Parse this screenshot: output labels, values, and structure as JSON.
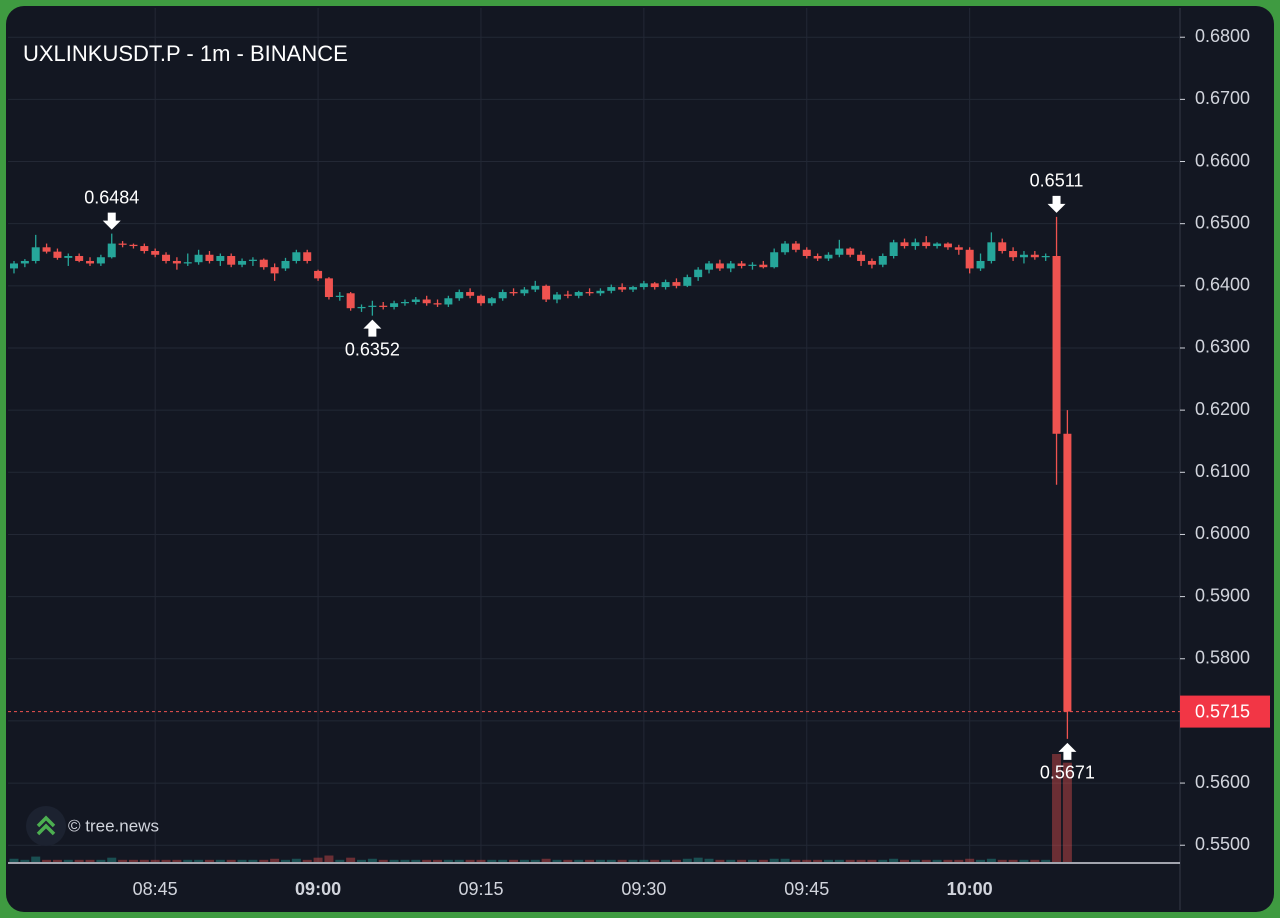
{
  "chart_data": {
    "type": "candlestick",
    "title": "UXLINKUSDT.P - 1m - BINANCE",
    "watermark": "© tree.news",
    "up_color": "#26a69a",
    "down_color": "#ef5350",
    "x": [
      "08:32",
      "08:33",
      "08:34",
      "08:35",
      "08:36",
      "08:37",
      "08:38",
      "08:39",
      "08:40",
      "08:41",
      "08:42",
      "08:43",
      "08:44",
      "08:45",
      "08:46",
      "08:47",
      "08:48",
      "08:49",
      "08:50",
      "08:51",
      "08:52",
      "08:53",
      "08:54",
      "08:55",
      "08:56",
      "08:57",
      "08:58",
      "08:59",
      "09:00",
      "09:01",
      "09:02",
      "09:03",
      "09:04",
      "09:05",
      "09:06",
      "09:07",
      "09:08",
      "09:09",
      "09:10",
      "09:11",
      "09:12",
      "09:13",
      "09:14",
      "09:15",
      "09:16",
      "09:17",
      "09:18",
      "09:19",
      "09:20",
      "09:21",
      "09:22",
      "09:23",
      "09:24",
      "09:25",
      "09:26",
      "09:27",
      "09:28",
      "09:29",
      "09:30",
      "09:31",
      "09:32",
      "09:33",
      "09:34",
      "09:35",
      "09:36",
      "09:37",
      "09:38",
      "09:39",
      "09:40",
      "09:41",
      "09:42",
      "09:43",
      "09:44",
      "09:45",
      "09:46",
      "09:47",
      "09:48",
      "09:49",
      "09:50",
      "09:51",
      "09:52",
      "09:53",
      "09:54",
      "09:55",
      "09:56",
      "09:57",
      "09:58",
      "09:59",
      "10:00",
      "10:01",
      "10:02",
      "10:03",
      "10:04",
      "10:05",
      "10:06",
      "10:07",
      "10:08",
      "10:09"
    ],
    "open": [
      0.6428,
      0.6436,
      0.644,
      0.6462,
      0.6455,
      0.6445,
      0.6448,
      0.644,
      0.6436,
      0.6446,
      0.6468,
      0.6466,
      0.6464,
      0.6456,
      0.645,
      0.644,
      0.6436,
      0.6438,
      0.645,
      0.644,
      0.6448,
      0.6434,
      0.644,
      0.6442,
      0.643,
      0.6428,
      0.644,
      0.6454,
      0.6424,
      0.6412,
      0.6382,
      0.6388,
      0.6364,
      0.6366,
      0.6368,
      0.6366,
      0.6372,
      0.6374,
      0.6378,
      0.6372,
      0.637,
      0.638,
      0.639,
      0.6384,
      0.6372,
      0.638,
      0.639,
      0.6388,
      0.6394,
      0.64,
      0.6378,
      0.6386,
      0.6384,
      0.639,
      0.6388,
      0.6392,
      0.6398,
      0.6394,
      0.6398,
      0.6404,
      0.6398,
      0.6406,
      0.64,
      0.6414,
      0.6426,
      0.6436,
      0.6428,
      0.6436,
      0.6432,
      0.6434,
      0.643,
      0.6454,
      0.6468,
      0.6458,
      0.6448,
      0.6444,
      0.645,
      0.646,
      0.645,
      0.644,
      0.6434,
      0.6448,
      0.647,
      0.6464,
      0.647,
      0.6464,
      0.6468,
      0.6462,
      0.6458,
      0.6428,
      0.644,
      0.647,
      0.6456,
      0.6446,
      0.645,
      0.6446,
      0.6448,
      0.6162
    ],
    "high": [
      0.644,
      0.6443,
      0.6482,
      0.6468,
      0.646,
      0.6452,
      0.6452,
      0.6446,
      0.645,
      0.6484,
      0.6472,
      0.6468,
      0.6468,
      0.646,
      0.6454,
      0.6446,
      0.6452,
      0.6458,
      0.6456,
      0.6452,
      0.6452,
      0.6444,
      0.6446,
      0.6444,
      0.6436,
      0.6445,
      0.6458,
      0.6458,
      0.6426,
      0.6414,
      0.639,
      0.639,
      0.637,
      0.6376,
      0.6374,
      0.6376,
      0.6378,
      0.6382,
      0.6384,
      0.6378,
      0.6384,
      0.6394,
      0.6396,
      0.6386,
      0.6382,
      0.6394,
      0.6396,
      0.6398,
      0.6408,
      0.6402,
      0.639,
      0.6392,
      0.6392,
      0.6396,
      0.6396,
      0.6402,
      0.6404,
      0.64,
      0.6408,
      0.6406,
      0.641,
      0.6412,
      0.6418,
      0.643,
      0.644,
      0.6442,
      0.644,
      0.644,
      0.6438,
      0.644,
      0.646,
      0.6472,
      0.6472,
      0.6462,
      0.6452,
      0.6454,
      0.6474,
      0.6462,
      0.6456,
      0.6444,
      0.6452,
      0.6474,
      0.6476,
      0.6476,
      0.648,
      0.647,
      0.647,
      0.6466,
      0.6462,
      0.6452,
      0.6486,
      0.6476,
      0.6462,
      0.6456,
      0.6456,
      0.6452,
      0.6511,
      0.62
    ],
    "low": [
      0.642,
      0.643,
      0.6436,
      0.6452,
      0.6442,
      0.6432,
      0.6438,
      0.6432,
      0.6432,
      0.6444,
      0.6462,
      0.646,
      0.6452,
      0.6446,
      0.6436,
      0.6426,
      0.6432,
      0.6434,
      0.6436,
      0.6432,
      0.643,
      0.643,
      0.6432,
      0.6426,
      0.6408,
      0.6424,
      0.6436,
      0.6436,
      0.6408,
      0.6378,
      0.6376,
      0.636,
      0.6358,
      0.6352,
      0.6362,
      0.6362,
      0.6368,
      0.637,
      0.6368,
      0.6366,
      0.6366,
      0.6376,
      0.638,
      0.6368,
      0.6368,
      0.6376,
      0.6384,
      0.6384,
      0.639,
      0.6374,
      0.6372,
      0.638,
      0.638,
      0.6384,
      0.6384,
      0.6388,
      0.639,
      0.639,
      0.6394,
      0.6394,
      0.6394,
      0.6396,
      0.6398,
      0.6408,
      0.642,
      0.6424,
      0.6422,
      0.6428,
      0.6426,
      0.6428,
      0.6428,
      0.645,
      0.6454,
      0.6444,
      0.644,
      0.644,
      0.6446,
      0.6446,
      0.6432,
      0.6428,
      0.643,
      0.6444,
      0.646,
      0.6458,
      0.646,
      0.646,
      0.6458,
      0.645,
      0.642,
      0.6424,
      0.6436,
      0.6452,
      0.644,
      0.6436,
      0.6442,
      0.644,
      0.608,
      0.5671
    ],
    "close": [
      0.6436,
      0.644,
      0.6462,
      0.6455,
      0.6445,
      0.6448,
      0.644,
      0.6436,
      0.6446,
      0.6468,
      0.6466,
      0.6464,
      0.6456,
      0.645,
      0.644,
      0.6436,
      0.6438,
      0.645,
      0.644,
      0.6448,
      0.6434,
      0.644,
      0.6442,
      0.643,
      0.642,
      0.644,
      0.6454,
      0.644,
      0.6412,
      0.6382,
      0.6384,
      0.6364,
      0.6366,
      0.6368,
      0.6366,
      0.6372,
      0.6374,
      0.6378,
      0.6372,
      0.637,
      0.638,
      0.639,
      0.6384,
      0.6372,
      0.638,
      0.639,
      0.6388,
      0.6394,
      0.64,
      0.6378,
      0.6386,
      0.6384,
      0.639,
      0.6388,
      0.6392,
      0.6398,
      0.6394,
      0.6398,
      0.6404,
      0.6398,
      0.6406,
      0.64,
      0.6414,
      0.6426,
      0.6436,
      0.6428,
      0.6436,
      0.6432,
      0.6434,
      0.643,
      0.6454,
      0.6468,
      0.6458,
      0.6448,
      0.6444,
      0.645,
      0.646,
      0.645,
      0.644,
      0.6434,
      0.6448,
      0.647,
      0.6464,
      0.647,
      0.6464,
      0.6468,
      0.6462,
      0.6458,
      0.6428,
      0.644,
      0.647,
      0.6456,
      0.6446,
      0.645,
      0.6446,
      0.6448,
      0.6162,
      0.5715
    ],
    "volume": [
      3,
      2,
      5,
      2,
      2,
      2,
      2,
      2,
      2,
      4,
      2,
      2,
      2,
      2,
      2,
      2,
      2,
      2,
      2,
      2,
      2,
      2,
      2,
      2,
      3,
      2,
      3,
      2,
      4,
      6,
      2,
      4,
      2,
      3,
      2,
      2,
      2,
      2,
      2,
      2,
      2,
      2,
      2,
      2,
      2,
      2,
      2,
      2,
      2,
      3,
      2,
      2,
      2,
      2,
      2,
      2,
      2,
      2,
      2,
      2,
      2,
      2,
      3,
      4,
      3,
      2,
      2,
      2,
      2,
      2,
      3,
      3,
      2,
      2,
      2,
      2,
      2,
      2,
      2,
      2,
      2,
      3,
      2,
      2,
      2,
      2,
      2,
      2,
      3,
      2,
      3,
      2,
      2,
      2,
      2,
      2,
      100,
      92
    ],
    "xlim": [
      "08:32",
      "10:19"
    ],
    "xticks": [
      "08:45",
      "09:00",
      "09:15",
      "09:30",
      "09:45",
      "10:00"
    ],
    "ylim": [
      0.5473,
      0.6847
    ],
    "yticks": [
      {
        "value": 0.55,
        "label": "0.5500"
      },
      {
        "value": 0.56,
        "label": "0.5600"
      },
      {
        "value": 0.57,
        "label": "0.5700"
      },
      {
        "value": 0.58,
        "label": "0.5800"
      },
      {
        "value": 0.59,
        "label": "0.5900"
      },
      {
        "value": 0.6,
        "label": "0.6000"
      },
      {
        "value": 0.61,
        "label": "0.6100"
      },
      {
        "value": 0.62,
        "label": "0.6200"
      },
      {
        "value": 0.63,
        "label": "0.6300"
      },
      {
        "value": 0.64,
        "label": "0.6400"
      },
      {
        "value": 0.65,
        "label": "0.6500"
      },
      {
        "value": 0.66,
        "label": "0.6600"
      },
      {
        "value": 0.67,
        "label": "0.6700"
      },
      {
        "value": 0.68,
        "label": "0.6800"
      }
    ],
    "grid": true,
    "last_price": 0.5715,
    "annotations": [
      {
        "x": "08:41",
        "value": 0.6484,
        "side": "above"
      },
      {
        "x": "09:05",
        "value": 0.6352,
        "side": "below"
      },
      {
        "x": "10:08",
        "value": 0.6511,
        "side": "above"
      },
      {
        "x": "10:09",
        "value": 0.5671,
        "side": "below"
      }
    ]
  }
}
